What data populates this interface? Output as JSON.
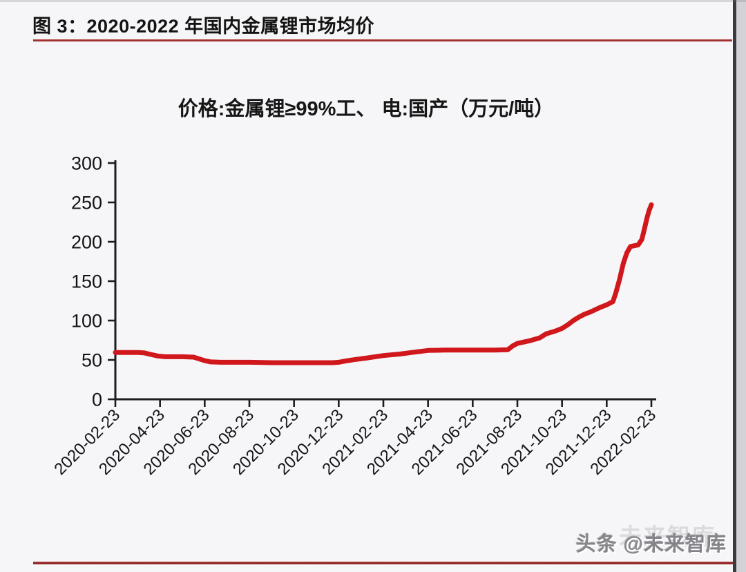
{
  "page": {
    "figure_title": "图 3：2020-2022 年国内金属锂市场均价",
    "watermark": "头条 @未来智库",
    "watermark_ghost": "未来智库",
    "accent_rule_color": "#9c2b2b"
  },
  "chart_data": {
    "type": "line",
    "title": "价格:金属锂≥99%工、 电:国产（万元/吨）",
    "ylabel": "",
    "xlabel": "",
    "ylim": [
      0,
      300
    ],
    "yticks": [
      0,
      50,
      100,
      150,
      200,
      250,
      300
    ],
    "x_tick_labels": [
      "2020-02-23",
      "2020-04-23",
      "2020-06-23",
      "2020-08-23",
      "2020-10-23",
      "2020-12-23",
      "2021-02-23",
      "2021-04-23",
      "2021-06-23",
      "2021-08-23",
      "2021-10-23",
      "2021-12-23",
      "2022-02-23"
    ],
    "grid": false,
    "legend_position": "none",
    "line_color": "#d0181c",
    "axis_color": "#1c1c1c",
    "series": [
      {
        "name": "金属锂≥99%工、电:国产市场均价(万元/吨)",
        "points": [
          [
            "2020-02-23",
            59.5
          ],
          [
            "2020-03-23",
            59.5
          ],
          [
            "2020-04-01",
            59
          ],
          [
            "2020-04-10",
            57
          ],
          [
            "2020-04-20",
            55
          ],
          [
            "2020-04-30",
            54
          ],
          [
            "2020-05-23",
            54
          ],
          [
            "2020-06-08",
            53.5
          ],
          [
            "2020-06-15",
            51.5
          ],
          [
            "2020-06-23",
            49
          ],
          [
            "2020-07-01",
            47.5
          ],
          [
            "2020-07-15",
            47
          ],
          [
            "2020-08-23",
            47
          ],
          [
            "2020-09-23",
            46.5
          ],
          [
            "2020-10-23",
            46.5
          ],
          [
            "2020-11-23",
            46.5
          ],
          [
            "2020-12-15",
            46.5
          ],
          [
            "2020-12-23",
            47
          ],
          [
            "2021-01-01",
            48.5
          ],
          [
            "2021-01-15",
            50.5
          ],
          [
            "2021-02-01",
            52.5
          ],
          [
            "2021-02-23",
            55.5
          ],
          [
            "2021-03-15",
            57.5
          ],
          [
            "2021-04-01",
            59.5
          ],
          [
            "2021-04-23",
            62
          ],
          [
            "2021-05-15",
            62.5
          ],
          [
            "2021-06-23",
            62.5
          ],
          [
            "2021-07-23",
            62.5
          ],
          [
            "2021-08-10",
            63
          ],
          [
            "2021-08-17",
            68
          ],
          [
            "2021-08-23",
            71
          ],
          [
            "2021-09-08",
            74
          ],
          [
            "2021-09-23",
            78
          ],
          [
            "2021-10-01",
            83
          ],
          [
            "2021-10-15",
            87
          ],
          [
            "2021-10-23",
            90
          ],
          [
            "2021-11-01",
            95
          ],
          [
            "2021-11-08",
            100
          ],
          [
            "2021-11-15",
            104
          ],
          [
            "2021-11-23",
            108
          ],
          [
            "2021-12-01",
            111
          ],
          [
            "2021-12-08",
            114
          ],
          [
            "2021-12-15",
            117
          ],
          [
            "2021-12-23",
            120
          ],
          [
            "2022-01-01",
            124
          ],
          [
            "2022-01-05",
            135
          ],
          [
            "2022-01-10",
            152
          ],
          [
            "2022-01-15",
            172
          ],
          [
            "2022-01-20",
            186
          ],
          [
            "2022-01-25",
            194
          ],
          [
            "2022-02-05",
            196
          ],
          [
            "2022-02-10",
            203
          ],
          [
            "2022-02-14",
            218
          ],
          [
            "2022-02-17",
            230
          ],
          [
            "2022-02-20",
            240
          ],
          [
            "2022-02-23",
            247
          ]
        ]
      }
    ]
  }
}
